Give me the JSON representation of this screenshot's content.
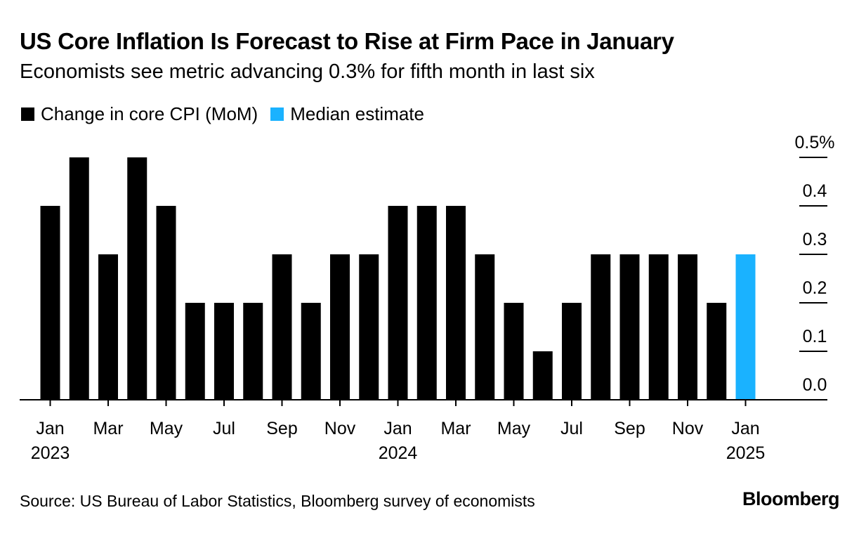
{
  "header": {
    "title": "US Core Inflation Is Forecast to Rise at Firm Pace in January",
    "subtitle": "Economists see metric advancing 0.3% for fifth month in last six"
  },
  "legend": {
    "items": [
      {
        "label": "Change in core CPI (MoM)",
        "color": "#000000"
      },
      {
        "label": "Median estimate",
        "color": "#1ab2ff"
      }
    ]
  },
  "footer": {
    "source": "Source: US Bureau of Labor Statistics, Bloomberg survey of economists",
    "brand": "Bloomberg"
  },
  "chart_data": {
    "type": "bar",
    "title": "US Core Inflation Is Forecast to Rise at Firm Pace in January",
    "subtitle": "Economists see metric advancing 0.3% for fifth month in last six",
    "categories": [
      "Jan 2023",
      "Feb 2023",
      "Mar 2023",
      "Apr 2023",
      "May 2023",
      "Jun 2023",
      "Jul 2023",
      "Aug 2023",
      "Sep 2023",
      "Oct 2023",
      "Nov 2023",
      "Dec 2023",
      "Jan 2024",
      "Feb 2024",
      "Mar 2024",
      "Apr 2024",
      "May 2024",
      "Jun 2024",
      "Jul 2024",
      "Aug 2024",
      "Sep 2024",
      "Oct 2024",
      "Nov 2024",
      "Dec 2024",
      "Jan 2025"
    ],
    "series": [
      {
        "name": "Change in core CPI (MoM)",
        "color": "#000000",
        "values": [
          0.4,
          0.5,
          0.3,
          0.5,
          0.4,
          0.2,
          0.2,
          0.2,
          0.3,
          0.2,
          0.3,
          0.3,
          0.4,
          0.4,
          0.4,
          0.3,
          0.2,
          0.1,
          0.2,
          0.3,
          0.3,
          0.3,
          0.3,
          0.2,
          null
        ]
      },
      {
        "name": "Median estimate",
        "color": "#1ab2ff",
        "values": [
          null,
          null,
          null,
          null,
          null,
          null,
          null,
          null,
          null,
          null,
          null,
          null,
          null,
          null,
          null,
          null,
          null,
          null,
          null,
          null,
          null,
          null,
          null,
          null,
          0.3
        ]
      }
    ],
    "x_tick_labels": [
      {
        "index": 0,
        "month": "Jan",
        "year": "2023"
      },
      {
        "index": 2,
        "month": "Mar",
        "year": ""
      },
      {
        "index": 4,
        "month": "May",
        "year": ""
      },
      {
        "index": 6,
        "month": "Jul",
        "year": ""
      },
      {
        "index": 8,
        "month": "Sep",
        "year": ""
      },
      {
        "index": 10,
        "month": "Nov",
        "year": ""
      },
      {
        "index": 12,
        "month": "Jan",
        "year": "2024"
      },
      {
        "index": 14,
        "month": "Mar",
        "year": ""
      },
      {
        "index": 16,
        "month": "May",
        "year": ""
      },
      {
        "index": 18,
        "month": "Jul",
        "year": ""
      },
      {
        "index": 20,
        "month": "Sep",
        "year": ""
      },
      {
        "index": 22,
        "month": "Nov",
        "year": ""
      },
      {
        "index": 24,
        "month": "Jan",
        "year": "2025"
      }
    ],
    "y_ticks": [
      {
        "value": 0.0,
        "label": "0.0"
      },
      {
        "value": 0.1,
        "label": "0.1"
      },
      {
        "value": 0.2,
        "label": "0.2"
      },
      {
        "value": 0.3,
        "label": "0.3"
      },
      {
        "value": 0.4,
        "label": "0.4"
      },
      {
        "value": 0.5,
        "label": "0.5%"
      }
    ],
    "ylim": [
      0,
      0.5
    ],
    "y_axis_position": "right",
    "grid": false,
    "legend_position": "top-left"
  }
}
